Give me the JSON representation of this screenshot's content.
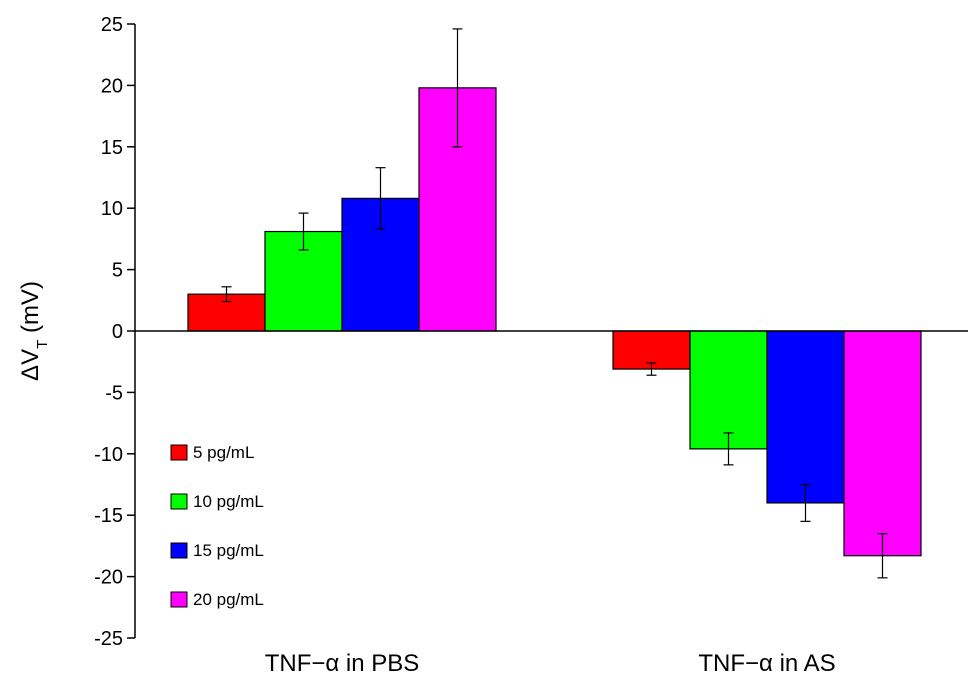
{
  "chart_data": {
    "type": "bar",
    "title": "",
    "xlabel": "",
    "ylabel": {
      "main": "ΔV",
      "subscript": "T",
      "unit": " (mV)"
    },
    "ylim": [
      -25,
      25
    ],
    "yticks": [
      25,
      20,
      15,
      10,
      5,
      0,
      -5,
      -10,
      -15,
      -20,
      -25
    ],
    "categories": [
      "TNF−α in PBS",
      "TNF−α in AS"
    ],
    "series": [
      {
        "name": "5 pg/mL",
        "color": "#ff0000",
        "values": [
          3.0,
          -3.1
        ],
        "errors": [
          0.6,
          0.5
        ]
      },
      {
        "name": "10 pg/mL",
        "color": "#00ff00",
        "values": [
          8.1,
          -9.6
        ],
        "errors": [
          1.5,
          1.3
        ]
      },
      {
        "name": "15 pg/mL",
        "color": "#0000ff",
        "values": [
          10.8,
          -14.0
        ],
        "errors": [
          2.5,
          1.5
        ]
      },
      {
        "name": "20 pg/mL",
        "color": "#ff00ff",
        "values": [
          19.8,
          -18.3
        ],
        "errors": [
          4.8,
          1.8
        ]
      }
    ],
    "legend_position": "left",
    "grid": false
  }
}
